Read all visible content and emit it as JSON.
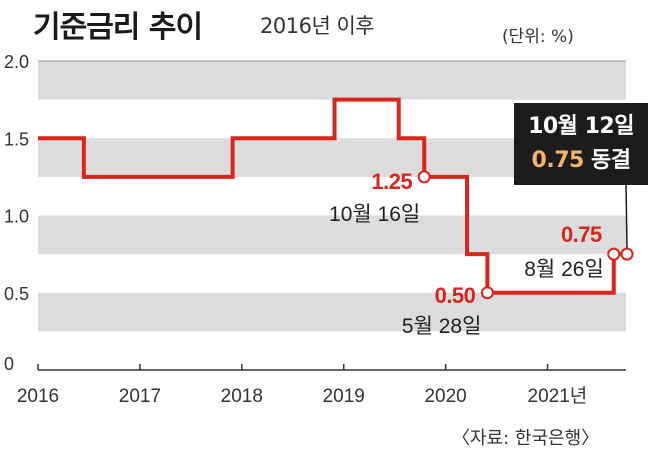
{
  "header": {
    "title": "기준금리 추이",
    "subtitle": "2016년 이후",
    "unit": "(단위: %)"
  },
  "source": "〈자료: 한국은행〉",
  "callout": {
    "date": "10월 12일",
    "rate": "0.75",
    "status": "동결"
  },
  "colors": {
    "line": "#d9251c",
    "band": "#dcdcdc",
    "callout_bg": "#1c1c1c",
    "callout_rate": "#f5b26b"
  },
  "chart_data": {
    "type": "line",
    "step": true,
    "title": "기준금리 추이",
    "subtitle": "2016년 이후",
    "ylabel": "(단위: %)",
    "xlim": [
      2016,
      2021.77
    ],
    "ylim": [
      0,
      2.0
    ],
    "yticks": [
      0,
      0.5,
      1.0,
      1.5,
      2.0
    ],
    "ytick_labels": [
      "0",
      "0.5",
      "1.0",
      "1.5",
      "2.0"
    ],
    "xticks": [
      2016,
      2017,
      2018,
      2019,
      2020,
      2021
    ],
    "xtick_labels": [
      "2016",
      "2017",
      "2018",
      "2019",
      "2020",
      "2021년"
    ],
    "series": [
      {
        "name": "기준금리",
        "points": [
          {
            "x": 2016.0,
            "y": 1.5
          },
          {
            "x": 2016.45,
            "y": 1.25
          },
          {
            "x": 2017.91,
            "y": 1.5
          },
          {
            "x": 2018.91,
            "y": 1.75
          },
          {
            "x": 2019.54,
            "y": 1.5
          },
          {
            "x": 2019.79,
            "y": 1.25
          },
          {
            "x": 2020.21,
            "y": 0.75
          },
          {
            "x": 2020.41,
            "y": 0.5
          },
          {
            "x": 2021.65,
            "y": 0.75
          },
          {
            "x": 2021.78,
            "y": 0.75
          }
        ]
      }
    ],
    "markers": [
      {
        "x": 2019.79,
        "y": 1.25,
        "value_label": "1.25",
        "date_label": "10월 16일"
      },
      {
        "x": 2020.41,
        "y": 0.5,
        "value_label": "0.50",
        "date_label": "5월 28일"
      },
      {
        "x": 2021.65,
        "y": 0.75,
        "value_label": "0.75",
        "date_label": "8월 26일"
      },
      {
        "x": 2021.78,
        "y": 0.75,
        "value_label": "",
        "date_label": ""
      }
    ]
  }
}
